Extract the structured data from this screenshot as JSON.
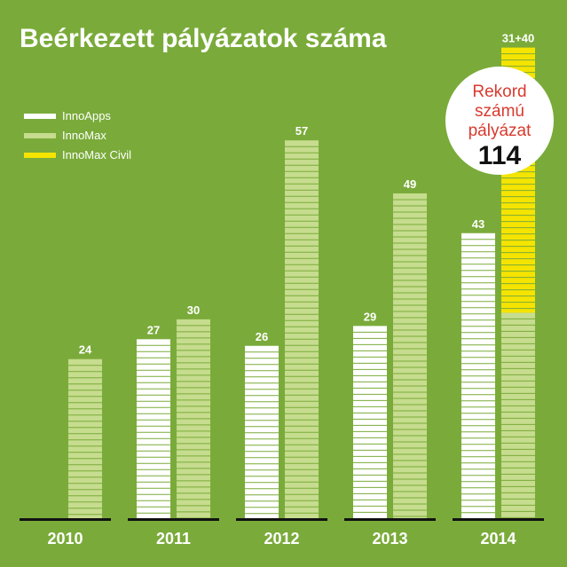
{
  "chart_data": {
    "type": "bar",
    "title": "Beérkezett pályázatok száma",
    "categories": [
      "2010",
      "2011",
      "2012",
      "2013",
      "2014"
    ],
    "series": [
      {
        "name": "InnoApps",
        "color": "#ffffff",
        "values": [
          null,
          27,
          26,
          29,
          43
        ]
      },
      {
        "name": "InnoMax",
        "color": "#c6dc8e",
        "values": [
          24,
          30,
          57,
          49,
          31
        ]
      },
      {
        "name": "InnoMax Civil",
        "color": "#f5e400",
        "values": [
          null,
          null,
          null,
          null,
          40
        ],
        "stacked_on": "InnoMax"
      }
    ],
    "data_labels": [
      "",
      "24",
      "27",
      "30",
      "26",
      "57",
      "29",
      "49",
      "43",
      "31+40"
    ],
    "ylim": [
      0,
      75
    ],
    "grid": false,
    "legend_position": "top-left",
    "annotation": {
      "line1": "Rekord",
      "line2": "számú",
      "line3": "pályázat",
      "number": "114"
    }
  }
}
